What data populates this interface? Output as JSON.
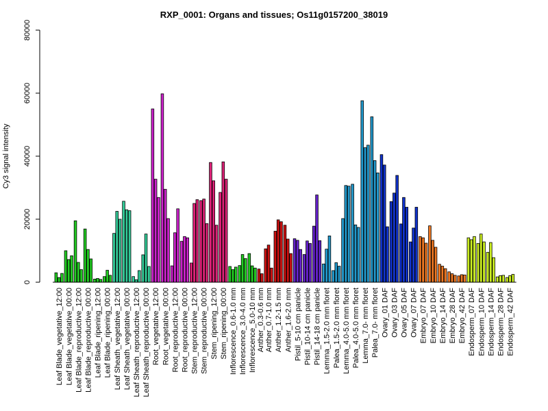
{
  "chart_data": {
    "type": "bar",
    "title": "RXP_0001: Organs and tissues; Os11g0157200_38019",
    "ylabel": "Cy3 signal intensity",
    "xlabel": "",
    "ylim": [
      0,
      80000
    ],
    "yticks": [
      0,
      20000,
      40000,
      60000,
      80000
    ],
    "grid": false,
    "legend": "none",
    "groups": [
      {
        "color": "#22cc22",
        "values": [
          3000,
          1500,
          2800
        ],
        "label": "Leaf Blade_vegetative_12:00"
      },
      {
        "color": "#22cc22",
        "values": [
          10000,
          7200,
          8400
        ],
        "label": "Leaf Blade_vegetative_00:00"
      },
      {
        "color": "#22cc22",
        "values": [
          19500,
          6300,
          4000
        ],
        "label": "Leaf Blade_reproductive_12:00"
      },
      {
        "color": "#22cc22",
        "values": [
          16900,
          10400,
          7400
        ],
        "label": "Leaf Blade_reproductive_00:00"
      },
      {
        "color": "#22cc22",
        "values": [
          1000,
          1200,
          900
        ],
        "label": "Leaf Blade_ripening_12:00"
      },
      {
        "color": "#22cc22",
        "values": [
          1800,
          3800,
          2200
        ],
        "label": "Leaf Blade_ripening_00:00"
      },
      {
        "color": "#33cc99",
        "values": [
          15500,
          22500,
          20000
        ],
        "label": "Leaf Sheath_vegetative_12:00"
      },
      {
        "color": "#33cc99",
        "values": [
          25700,
          23000,
          22700
        ],
        "label": "Leaf Sheath_vegetative_00:00"
      },
      {
        "color": "#33cc99",
        "values": [
          1800,
          800,
          3700
        ],
        "label": "Leaf Sheath_reproductive_12:00"
      },
      {
        "color": "#33cc99",
        "values": [
          8700,
          15300,
          5000
        ],
        "label": "Leaf Sheath_reproductive_00:00"
      },
      {
        "color": "#cc22cc",
        "values": [
          55000,
          32700,
          26900
        ],
        "label": "Root_vegetative_12:00"
      },
      {
        "color": "#cc22cc",
        "values": [
          59800,
          29500,
          20200
        ],
        "label": "Root_vegetative_00:00"
      },
      {
        "color": "#cc22cc",
        "values": [
          5200,
          15700,
          23300
        ],
        "label": "Root_reproductive_12:00"
      },
      {
        "color": "#cc22cc",
        "values": [
          13000,
          14500,
          14100
        ],
        "label": "Root_reproductive_00:00"
      },
      {
        "color": "#dd2277",
        "values": [
          6100,
          25000,
          26200
        ],
        "label": "Stem_reproductive_12:00"
      },
      {
        "color": "#dd2277",
        "values": [
          25900,
          26400,
          18600
        ],
        "label": "Stem_reproductive_00:00"
      },
      {
        "color": "#dd2277",
        "values": [
          38000,
          32200,
          18100
        ],
        "label": "Stem_ripening_12:00"
      },
      {
        "color": "#dd2277",
        "values": [
          28500,
          38200,
          32700
        ],
        "label": "Stem_ripening_00:00"
      },
      {
        "color": "#22cc22",
        "values": [
          5000,
          4000,
          4800
        ],
        "label": "Inflorescence_0.6-1.0 mm"
      },
      {
        "color": "#22cc22",
        "values": [
          5300,
          8800,
          7500
        ],
        "label": "Inflorescence_3.0-4.0 mm"
      },
      {
        "color": "#22cc22",
        "values": [
          9100,
          5200,
          4500
        ],
        "label": "Inflorescence_5.0-10 mm"
      },
      {
        "color": "#cc1111",
        "values": [
          4200,
          2700
        ],
        "label": "Anther_0.3-0.6 mm"
      },
      {
        "color": "#cc1111",
        "values": [
          10600,
          11800,
          4500
        ],
        "label": "Anther_0.7-1.0 mm"
      },
      {
        "color": "#cc1111",
        "values": [
          16200,
          19800,
          19200
        ],
        "label": "Anther_1.2-1.5 mm"
      },
      {
        "color": "#cc1111",
        "values": [
          18100,
          13700,
          9100
        ],
        "label": "Anther_1.6-2.0 mm"
      },
      {
        "color": "#6622cc",
        "values": [
          13800,
          13300,
          10400
        ],
        "label": "Pistil_5-10 cm panicle"
      },
      {
        "color": "#6622cc",
        "values": [
          8800,
          13100,
          12300
        ],
        "label": "Pistil_10-14 cm panicle"
      },
      {
        "color": "#6622cc",
        "values": [
          17800,
          27700,
          13200
        ],
        "label": "Pistil_14-18 cm panicle"
      },
      {
        "color": "#2299cc",
        "values": [
          5800,
          10500,
          14700
        ],
        "label": "Lemma_1.5-2.0 mm floret"
      },
      {
        "color": "#2299cc",
        "values": [
          3700,
          6200,
          5100
        ],
        "label": "Palea_1.5-2.0 mm floret"
      },
      {
        "color": "#2299cc",
        "values": [
          20200,
          30700,
          30500
        ],
        "label": "Lemma_4.0-5.0 mm floret"
      },
      {
        "color": "#2299cc",
        "values": [
          31100,
          18200,
          17400
        ],
        "label": "Palea_4.0-5.0 mm floret"
      },
      {
        "color": "#2299cc",
        "values": [
          57600,
          42700,
          43500
        ],
        "label": "Lemma_7.0- mm floret"
      },
      {
        "color": "#2299cc",
        "values": [
          52500,
          38600,
          34700
        ],
        "label": "Palea_7.0- mm floret"
      },
      {
        "color": "#1133cc",
        "values": [
          40500,
          37200,
          17600
        ],
        "label": "Ovary_01 DAF"
      },
      {
        "color": "#1133cc",
        "values": [
          25600,
          28300,
          33900
        ],
        "label": "Ovary_03 DAF"
      },
      {
        "color": "#1133cc",
        "values": [
          18500,
          26900,
          23800
        ],
        "label": "Ovary_05 DAF"
      },
      {
        "color": "#1133cc",
        "values": [
          12800,
          17200,
          23800
        ],
        "label": "Ovary_07 DAF"
      },
      {
        "color": "#ee7722",
        "values": [
          14500,
          14100,
          12400
        ],
        "label": "Embryo_07 DAF"
      },
      {
        "color": "#ee7722",
        "values": [
          17900,
          13300,
          11100
        ],
        "label": "Embryo_10 DAF"
      },
      {
        "color": "#ee7722",
        "values": [
          5700,
          5100,
          4300
        ],
        "label": "Embryo_14 DAF"
      },
      {
        "color": "#ee7722",
        "values": [
          3300,
          2700,
          2200
        ],
        "label": "Embryo_28 DAF"
      },
      {
        "color": "#ee7722",
        "values": [
          2000,
          2400,
          2300
        ],
        "label": "Embryo_42 DAF"
      },
      {
        "color": "#ccee22",
        "values": [
          14100,
          13500,
          14500
        ],
        "label": "Endosperm_07 DAF"
      },
      {
        "color": "#ccee22",
        "values": [
          12300,
          15300,
          12800
        ],
        "label": "Endosperm_10 DAF"
      },
      {
        "color": "#ccee22",
        "values": [
          9500,
          12600,
          7800
        ],
        "label": "Endosperm_14 DAF"
      },
      {
        "color": "#ccee22",
        "values": [
          1700,
          2100,
          2200
        ],
        "label": "Endosperm_28 DAF"
      },
      {
        "color": "#ccee22",
        "values": [
          1500,
          2100,
          2500
        ],
        "label": "Endosperm_42 DAF"
      }
    ]
  }
}
